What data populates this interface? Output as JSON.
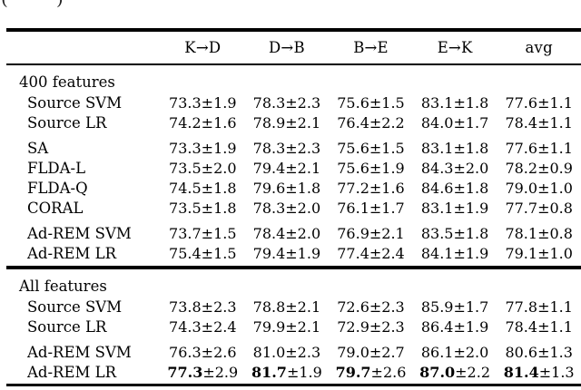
{
  "caption_fragment": {
    "left_glyph": "(",
    "right_glyph": ")"
  },
  "colors": {
    "text": "#000000",
    "rule": "#000000",
    "background": "#ffffff"
  },
  "table": {
    "headers": [
      "K→D",
      "D→B",
      "B→E",
      "E→K",
      "avg"
    ],
    "plus_minus": "±",
    "sections": [
      {
        "title": "400 features",
        "groups": [
          {
            "rows": [
              {
                "label": "Source SVM",
                "bold": false,
                "cells": [
                  {
                    "v": "73.3",
                    "pm": "1.9"
                  },
                  {
                    "v": "78.3",
                    "pm": "2.3"
                  },
                  {
                    "v": "75.6",
                    "pm": "1.5"
                  },
                  {
                    "v": "83.1",
                    "pm": "1.8"
                  },
                  {
                    "v": "77.6",
                    "pm": "1.1"
                  }
                ]
              },
              {
                "label": "Source LR",
                "bold": false,
                "cells": [
                  {
                    "v": "74.2",
                    "pm": "1.6"
                  },
                  {
                    "v": "78.9",
                    "pm": "2.1"
                  },
                  {
                    "v": "76.4",
                    "pm": "2.2"
                  },
                  {
                    "v": "84.0",
                    "pm": "1.7"
                  },
                  {
                    "v": "78.4",
                    "pm": "1.1"
                  }
                ]
              }
            ]
          },
          {
            "rows": [
              {
                "label": "SA",
                "bold": false,
                "cells": [
                  {
                    "v": "73.3",
                    "pm": "1.9"
                  },
                  {
                    "v": "78.3",
                    "pm": "2.3"
                  },
                  {
                    "v": "75.6",
                    "pm": "1.5"
                  },
                  {
                    "v": "83.1",
                    "pm": "1.8"
                  },
                  {
                    "v": "77.6",
                    "pm": "1.1"
                  }
                ]
              },
              {
                "label": "FLDA-L",
                "bold": false,
                "cells": [
                  {
                    "v": "73.5",
                    "pm": "2.0"
                  },
                  {
                    "v": "79.4",
                    "pm": "2.1"
                  },
                  {
                    "v": "75.6",
                    "pm": "1.9"
                  },
                  {
                    "v": "84.3",
                    "pm": "2.0"
                  },
                  {
                    "v": "78.2",
                    "pm": "0.9"
                  }
                ]
              },
              {
                "label": "FLDA-Q",
                "bold": false,
                "cells": [
                  {
                    "v": "74.5",
                    "pm": "1.8"
                  },
                  {
                    "v": "79.6",
                    "pm": "1.8"
                  },
                  {
                    "v": "77.2",
                    "pm": "1.6"
                  },
                  {
                    "v": "84.6",
                    "pm": "1.8"
                  },
                  {
                    "v": "79.0",
                    "pm": "1.0"
                  }
                ]
              },
              {
                "label": "CORAL",
                "bold": false,
                "cells": [
                  {
                    "v": "73.5",
                    "pm": "1.8"
                  },
                  {
                    "v": "78.3",
                    "pm": "2.0"
                  },
                  {
                    "v": "76.1",
                    "pm": "1.7"
                  },
                  {
                    "v": "83.1",
                    "pm": "1.9"
                  },
                  {
                    "v": "77.7",
                    "pm": "0.8"
                  }
                ]
              }
            ]
          },
          {
            "rows": [
              {
                "label": "Ad-REM SVM",
                "bold": false,
                "cells": [
                  {
                    "v": "73.7",
                    "pm": "1.5"
                  },
                  {
                    "v": "78.4",
                    "pm": "2.0"
                  },
                  {
                    "v": "76.9",
                    "pm": "2.1"
                  },
                  {
                    "v": "83.5",
                    "pm": "1.8"
                  },
                  {
                    "v": "78.1",
                    "pm": "0.8"
                  }
                ]
              },
              {
                "label": "Ad-REM LR",
                "bold": false,
                "cells": [
                  {
                    "v": "75.4",
                    "pm": "1.5"
                  },
                  {
                    "v": "79.4",
                    "pm": "1.9"
                  },
                  {
                    "v": "77.4",
                    "pm": "2.4"
                  },
                  {
                    "v": "84.1",
                    "pm": "1.9"
                  },
                  {
                    "v": "79.1",
                    "pm": "1.0"
                  }
                ]
              }
            ]
          }
        ]
      },
      {
        "title": "All features",
        "groups": [
          {
            "rows": [
              {
                "label": "Source SVM",
                "bold": false,
                "cells": [
                  {
                    "v": "73.8",
                    "pm": "2.3"
                  },
                  {
                    "v": "78.8",
                    "pm": "2.1"
                  },
                  {
                    "v": "72.6",
                    "pm": "2.3"
                  },
                  {
                    "v": "85.9",
                    "pm": "1.7"
                  },
                  {
                    "v": "77.8",
                    "pm": "1.1"
                  }
                ]
              },
              {
                "label": "Source LR",
                "bold": false,
                "cells": [
                  {
                    "v": "74.3",
                    "pm": "2.4"
                  },
                  {
                    "v": "79.9",
                    "pm": "2.1"
                  },
                  {
                    "v": "72.9",
                    "pm": "2.3"
                  },
                  {
                    "v": "86.4",
                    "pm": "1.9"
                  },
                  {
                    "v": "78.4",
                    "pm": "1.1"
                  }
                ]
              }
            ]
          },
          {
            "rows": [
              {
                "label": "Ad-REM SVM",
                "bold": false,
                "cells": [
                  {
                    "v": "76.3",
                    "pm": "2.6"
                  },
                  {
                    "v": "81.0",
                    "pm": "2.3"
                  },
                  {
                    "v": "79.0",
                    "pm": "2.7"
                  },
                  {
                    "v": "86.1",
                    "pm": "2.0"
                  },
                  {
                    "v": "80.6",
                    "pm": "1.3"
                  }
                ]
              },
              {
                "label": "Ad-REM LR",
                "bold": true,
                "cells": [
                  {
                    "v": "77.3",
                    "pm": "2.9"
                  },
                  {
                    "v": "81.7",
                    "pm": "1.9"
                  },
                  {
                    "v": "79.7",
                    "pm": "2.6"
                  },
                  {
                    "v": "87.0",
                    "pm": "2.2"
                  },
                  {
                    "v": "81.4",
                    "pm": "1.3"
                  }
                ]
              }
            ]
          }
        ]
      }
    ]
  }
}
